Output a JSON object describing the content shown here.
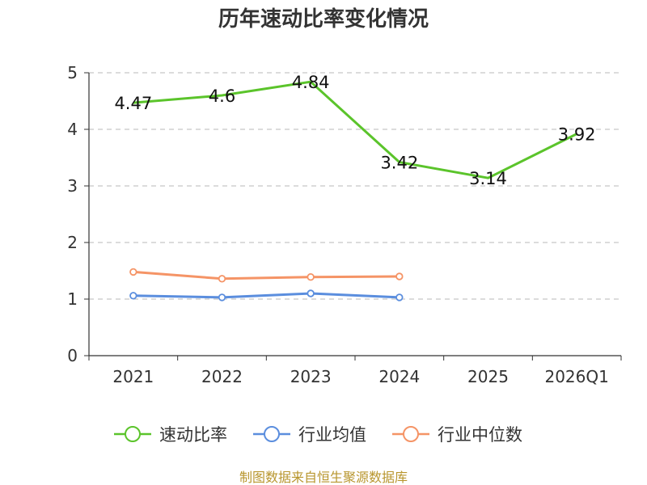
{
  "chart_data": {
    "type": "line",
    "title": "历年速动比率变化情况",
    "categories": [
      "2021",
      "2022",
      "2023",
      "2024",
      "2025",
      "2026Q1"
    ],
    "ylim": [
      0,
      5
    ],
    "yticks": [
      0,
      1,
      2,
      3,
      4,
      5
    ],
    "grid": true,
    "legend_position": "bottom",
    "series": [
      {
        "name": "速动比率",
        "color": "#5bc42b",
        "values": [
          4.47,
          4.6,
          4.84,
          3.42,
          3.14,
          3.92
        ],
        "show_labels": true,
        "show_markers": false
      },
      {
        "name": "行业均值",
        "color": "#5b8ede",
        "values": [
          1.06,
          1.03,
          1.1,
          1.03,
          null,
          null
        ],
        "show_labels": false,
        "show_markers": true
      },
      {
        "name": "行业中位数",
        "color": "#f59466",
        "values": [
          1.48,
          1.36,
          1.39,
          1.4,
          null,
          null
        ],
        "show_labels": false,
        "show_markers": true
      }
    ],
    "source": "制图数据来自恒生聚源数据库"
  }
}
